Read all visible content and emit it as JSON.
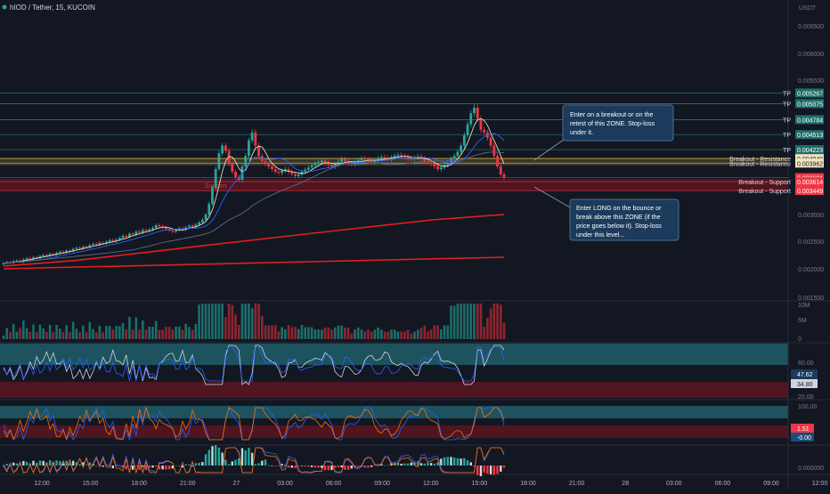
{
  "header": {
    "symbol": "hIOD / Tether, 15, KUCOIN"
  },
  "currency": "USDT",
  "price_axis": {
    "ticks": [
      "0.006500",
      "0.006000",
      "0.005500",
      "0.003000",
      "0.002500",
      "0.002000",
      "0.001500"
    ]
  },
  "level_lines": [
    {
      "kind": "TP",
      "price": 0.005267,
      "label": "0.005267",
      "tag": "TP",
      "color": "#26a69a"
    },
    {
      "kind": "TP",
      "price": 0.005075,
      "label": "0.005075",
      "tag": "TP",
      "color": "#26a69a"
    },
    {
      "kind": "TP",
      "price": 0.004784,
      "label": "0.004784",
      "tag": "TP",
      "color": "#26a69a"
    },
    {
      "kind": "TP",
      "price": 0.004513,
      "label": "0.004513",
      "tag": "TP",
      "color": "#26a69a"
    },
    {
      "kind": "TP",
      "price": 0.004223,
      "label": "0.004223",
      "tag": "TP",
      "color": "#26a69a"
    },
    {
      "kind": "res",
      "price": 0.004049,
      "label": "0.004049",
      "tag": "Breakout - Resistance",
      "color": "#f0c060"
    },
    {
      "kind": "res",
      "price": 0.003962,
      "label": "0.003962",
      "tag": "Breakout - Resistance",
      "color": "#f0c060"
    },
    {
      "kind": "cur",
      "price": 0.003691,
      "label": "0.003691",
      "tag": "",
      "color": "#f23645"
    },
    {
      "kind": "sup",
      "price": 0.003614,
      "label": "0.003614",
      "tag": "Breakout - Support",
      "color": "#f23645"
    },
    {
      "kind": "sup",
      "price": 0.003449,
      "label": "0.003449",
      "tag": "Breakout - Support",
      "color": "#f23645"
    }
  ],
  "countdown": "06:15",
  "zone_label": "Support",
  "annotations": [
    {
      "text_lines": [
        "Enter on a breakout or on the",
        "retest of this ZONE. Stop-loss",
        "under it."
      ]
    },
    {
      "text_lines": [
        "Enter LONG on the bounce or",
        "break above this ZONE (if the",
        "price goes below it). Stop-loss",
        "under this level..."
      ]
    }
  ],
  "volume_axis": [
    "10M",
    "5M",
    "0"
  ],
  "rsi": {
    "ticks": [
      "60.00",
      "20.00"
    ],
    "value_a": "47.62",
    "value_b": "34.80"
  },
  "stoch": {
    "ticks": [
      "100.00",
      "0.00"
    ],
    "value_a": "1.51",
    "value_b": "-0.00"
  },
  "macd": {
    "ticks": [
      "0.000000"
    ]
  },
  "time_axis": [
    "12:00",
    "15:00",
    "18:00",
    "21:00",
    "27",
    "03:00",
    "06:00",
    "09:00",
    "12:00",
    "15:00",
    "18:00",
    "21:00",
    "28",
    "03:00",
    "06:00",
    "09:00",
    "12:00"
  ],
  "colors": {
    "bg": "#131722",
    "up": "#26a69a",
    "down": "#f23645",
    "teal_zone": "#1e5a66",
    "red_zone": "#5a1520"
  },
  "chart_data": {
    "type": "candlestick",
    "title": "hIOD / Tether, 15, KUCOIN",
    "ylabel": "USDT",
    "ylim": [
      0.0015,
      0.0068
    ],
    "close": [
      0.0021,
      0.00212,
      0.00211,
      0.00214,
      0.00215,
      0.00213,
      0.00217,
      0.00219,
      0.00218,
      0.00221,
      0.0022,
      0.00223,
      0.00225,
      0.00224,
      0.00227,
      0.00226,
      0.00229,
      0.00231,
      0.0023,
      0.00233,
      0.00232,
      0.00236,
      0.00238,
      0.00237,
      0.0024,
      0.00239,
      0.00243,
      0.00245,
      0.00244,
      0.00247,
      0.00246,
      0.00249,
      0.00252,
      0.0025,
      0.00253,
      0.00256,
      0.0026,
      0.00258,
      0.00264,
      0.00262,
      0.00268,
      0.00266,
      0.00271,
      0.00269,
      0.00272,
      0.00275,
      0.0028,
      0.00278,
      0.00276,
      0.00273,
      0.0027,
      0.00268,
      0.00271,
      0.00274,
      0.00272,
      0.00276,
      0.00279,
      0.00277,
      0.00281,
      0.00285,
      0.0029,
      0.003,
      0.0032,
      0.0035,
      0.00385,
      0.00415,
      0.0043,
      0.0042,
      0.00395,
      0.0038,
      0.0037,
      0.00365,
      0.0039,
      0.0041,
      0.0044,
      0.00455,
      0.0043,
      0.0041,
      0.004,
      0.00395,
      0.0039,
      0.00385,
      0.0038,
      0.00378,
      0.00382,
      0.00385,
      0.0038,
      0.00376,
      0.00372,
      0.00375,
      0.0038,
      0.00384,
      0.00388,
      0.00392,
      0.00395,
      0.00398,
      0.00401,
      0.00397,
      0.00393,
      0.0039,
      0.00394,
      0.00399,
      0.00404,
      0.004,
      0.00396,
      0.00395,
      0.00398,
      0.00402,
      0.00405,
      0.00403,
      0.004,
      0.00398,
      0.00401,
      0.00405,
      0.00408,
      0.00406,
      0.00404,
      0.00407,
      0.0041,
      0.00412,
      0.0041,
      0.00408,
      0.00405,
      0.00404,
      0.00406,
      0.00409,
      0.00405,
      0.004,
      0.00398,
      0.00395,
      0.0039,
      0.00385,
      0.00388,
      0.00393,
      0.00398,
      0.00404,
      0.0041,
      0.00418,
      0.0043,
      0.0045,
      0.0047,
      0.0049,
      0.005,
      0.0048,
      0.0046,
      0.00455,
      0.00445,
      0.0043,
      0.0041,
      0.0039,
      0.00375,
      0.00369
    ]
  }
}
